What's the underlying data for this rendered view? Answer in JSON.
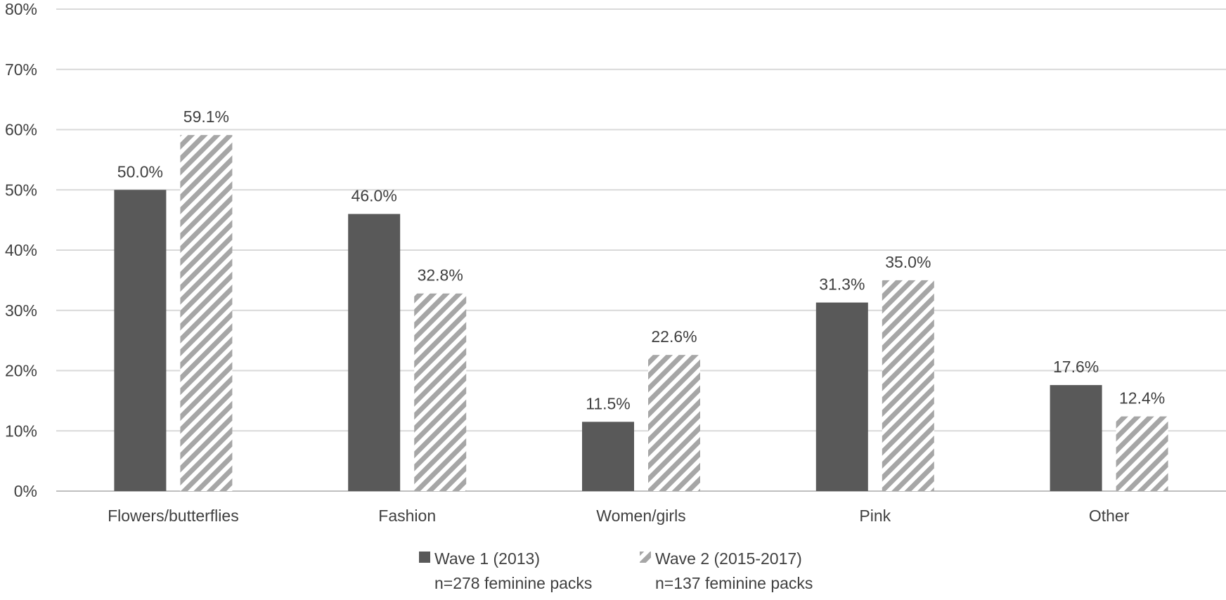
{
  "chart_data": {
    "type": "bar",
    "title": "",
    "xlabel": "",
    "ylabel": "",
    "ylim": [
      0,
      80
    ],
    "yticks": [
      "0%",
      "10%",
      "20%",
      "30%",
      "40%",
      "50%",
      "60%",
      "70%",
      "80%"
    ],
    "categories": [
      "Flowers/butterflies",
      "Fashion",
      "Women/girls",
      "Pink",
      "Other"
    ],
    "series": [
      {
        "name": "Wave 1 (2013)",
        "legend_sub": "n=278 feminine packs",
        "values": [
          50.0,
          46.0,
          11.5,
          31.3,
          17.6
        ],
        "labels": [
          "50.0%",
          "46.0%",
          "11.5%",
          "31.3%",
          "17.6%"
        ],
        "color": "#595959",
        "pattern": "solid"
      },
      {
        "name": "Wave 2 (2015-2017)",
        "legend_sub": "n=137 feminine packs",
        "values": [
          59.1,
          32.8,
          22.6,
          35.0,
          12.4
        ],
        "labels": [
          "59.1%",
          "32.8%",
          "22.6%",
          "35.0%",
          "12.4%"
        ],
        "color": "#a6a6a6",
        "pattern": "diagonal-stripes"
      }
    ],
    "grid": true,
    "legend_position": "bottom"
  }
}
